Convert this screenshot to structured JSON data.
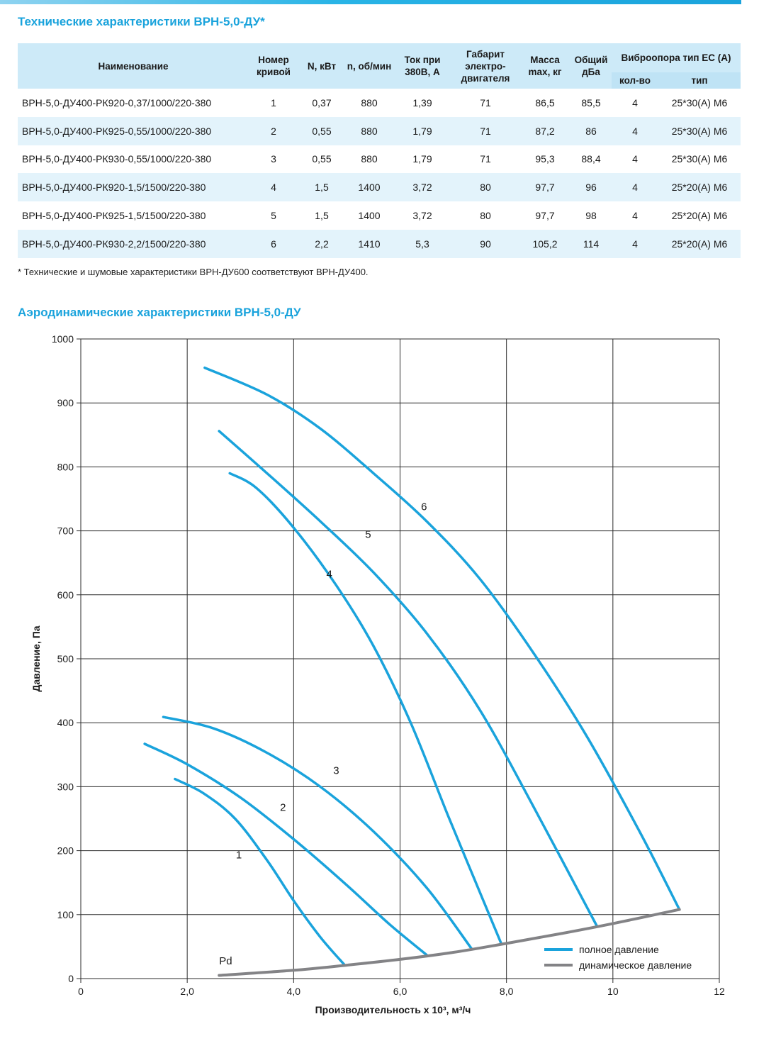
{
  "tech_title": "Технические характеристики ВРН-5,0-ДУ*",
  "table": {
    "headers": {
      "name": "Наименование",
      "curve": "Номер кривой",
      "power": "N, кВт",
      "rpm": "n, об/мин",
      "current": "Ток при 380В, А",
      "frame": "Габарит электро-двигателя",
      "mass": "Масса max, кг",
      "noise": "Общий дБа",
      "vibro": "Виброопора тип ЕС (А)",
      "vibro_qty": "кол-во",
      "vibro_type": "тип"
    },
    "rows": [
      {
        "name": "ВРН-5,0-ДУ400-РК920-0,37/1000/220-380",
        "curve": "1",
        "power": "0,37",
        "rpm": "880",
        "current": "1,39",
        "frame": "71",
        "mass": "86,5",
        "noise": "85,5",
        "qty": "4",
        "type": "25*30(А) М6"
      },
      {
        "name": "ВРН-5,0-ДУ400-РК925-0,55/1000/220-380",
        "curve": "2",
        "power": "0,55",
        "rpm": "880",
        "current": "1,79",
        "frame": "71",
        "mass": "87,2",
        "noise": "86",
        "qty": "4",
        "type": "25*30(А) М6"
      },
      {
        "name": "ВРН-5,0-ДУ400-РК930-0,55/1000/220-380",
        "curve": "3",
        "power": "0,55",
        "rpm": "880",
        "current": "1,79",
        "frame": "71",
        "mass": "95,3",
        "noise": "88,4",
        "qty": "4",
        "type": "25*30(А) М6"
      },
      {
        "name": "ВРН-5,0-ДУ400-РК920-1,5/1500/220-380",
        "curve": "4",
        "power": "1,5",
        "rpm": "1400",
        "current": "3,72",
        "frame": "80",
        "mass": "97,7",
        "noise": "96",
        "qty": "4",
        "type": "25*20(А) М6"
      },
      {
        "name": "ВРН-5,0-ДУ400-РК925-1,5/1500/220-380",
        "curve": "5",
        "power": "1,5",
        "rpm": "1400",
        "current": "3,72",
        "frame": "80",
        "mass": "97,7",
        "noise": "98",
        "qty": "4",
        "type": "25*20(А) М6"
      },
      {
        "name": "ВРН-5,0-ДУ400-РК930-2,2/1500/220-380",
        "curve": "6",
        "power": "2,2",
        "rpm": "1410",
        "current": "5,3",
        "frame": "90",
        "mass": "105,2",
        "noise": "114",
        "qty": "4",
        "type": "25*20(А) М6"
      }
    ]
  },
  "footnote": "* Технические и шумовые характеристики ВРН-ДУ600 соответствуют ВРН-ДУ400.",
  "aero_title": "Аэродинамические характеристики ВРН-5,0-ДУ",
  "colors": {
    "full_pressure": "#1aa3dc",
    "dynamic_pressure": "#838386",
    "accent": "#1aa3dc"
  },
  "chart_data": {
    "type": "line",
    "title": "Аэродинамические характеристики ВРН-5,0-ДУ",
    "xlabel": "Производительность x 10³, м³/ч",
    "ylabel": "Давление, Па",
    "xlim": [
      0,
      12
    ],
    "ylim": [
      0,
      1000
    ],
    "x_ticks": [
      "0",
      "2,0",
      "4,0",
      "6,0",
      "8,0",
      "10",
      "12"
    ],
    "y_ticks": [
      "0",
      "100",
      "200",
      "300",
      "400",
      "500",
      "600",
      "700",
      "800",
      "900",
      "1000"
    ],
    "x_tick_values": [
      0,
      2,
      4,
      6,
      8,
      10,
      12
    ],
    "y_tick_values": [
      0,
      100,
      200,
      300,
      400,
      500,
      600,
      700,
      800,
      900,
      1000
    ],
    "grid": true,
    "legend": "bottom-right",
    "legend_entries": [
      "полное давление",
      "динамическое давление"
    ],
    "series": [
      {
        "name": "1",
        "label": "1",
        "label_at": [
          2.97,
          188
        ],
        "kind": "full",
        "points": [
          [
            1.77,
            312
          ],
          [
            2.3,
            290
          ],
          [
            2.9,
            250
          ],
          [
            3.5,
            185
          ],
          [
            4.0,
            122
          ],
          [
            4.5,
            65
          ],
          [
            4.95,
            22
          ]
        ]
      },
      {
        "name": "2",
        "label": "2",
        "label_at": [
          3.8,
          262
        ],
        "kind": "full",
        "points": [
          [
            1.2,
            367
          ],
          [
            2.0,
            335
          ],
          [
            3.0,
            283
          ],
          [
            4.0,
            218
          ],
          [
            5.0,
            146
          ],
          [
            5.8,
            85
          ],
          [
            6.5,
            37
          ]
        ]
      },
      {
        "name": "3",
        "label": "3",
        "label_at": [
          4.8,
          320
        ],
        "kind": "full",
        "points": [
          [
            1.55,
            409
          ],
          [
            2.5,
            391
          ],
          [
            3.5,
            353
          ],
          [
            4.5,
            300
          ],
          [
            5.5,
            230
          ],
          [
            6.5,
            142
          ],
          [
            7.35,
            46
          ]
        ]
      },
      {
        "name": "4",
        "label": "4",
        "label_at": [
          4.67,
          627
        ],
        "kind": "full",
        "points": [
          [
            2.8,
            790
          ],
          [
            3.3,
            767
          ],
          [
            4.0,
            705
          ],
          [
            4.8,
            615
          ],
          [
            5.5,
            520
          ],
          [
            6.2,
            400
          ],
          [
            6.9,
            255
          ],
          [
            7.4,
            155
          ],
          [
            7.9,
            55
          ]
        ]
      },
      {
        "name": "5",
        "label": "5",
        "label_at": [
          5.4,
          689
        ],
        "kind": "full",
        "points": [
          [
            2.6,
            856
          ],
          [
            3.5,
            790
          ],
          [
            4.5,
            715
          ],
          [
            5.5,
            635
          ],
          [
            6.5,
            540
          ],
          [
            7.5,
            420
          ],
          [
            8.5,
            270
          ],
          [
            9.7,
            82
          ]
        ]
      },
      {
        "name": "6",
        "label": "6",
        "label_at": [
          6.45,
          732
        ],
        "kind": "full",
        "points": [
          [
            2.33,
            955
          ],
          [
            3.5,
            913
          ],
          [
            4.5,
            860
          ],
          [
            5.5,
            790
          ],
          [
            6.5,
            715
          ],
          [
            7.5,
            625
          ],
          [
            8.5,
            510
          ],
          [
            9.5,
            380
          ],
          [
            10.5,
            230
          ],
          [
            11.25,
            108
          ]
        ]
      },
      {
        "name": "Pd",
        "label": "Pd",
        "label_at": [
          2.6,
          22
        ],
        "kind": "dynamic",
        "points": [
          [
            2.6,
            5
          ],
          [
            4.0,
            13
          ],
          [
            5.0,
            21
          ],
          [
            6.0,
            30
          ],
          [
            7.0,
            41
          ],
          [
            8.0,
            55
          ],
          [
            9.0,
            70
          ],
          [
            10.0,
            86
          ],
          [
            11.25,
            108
          ]
        ]
      }
    ]
  }
}
